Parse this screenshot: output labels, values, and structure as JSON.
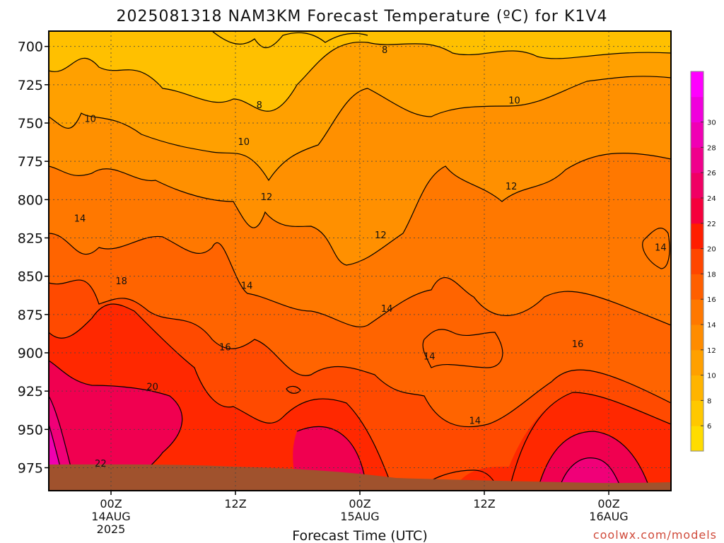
{
  "chart_data": {
    "type": "heatmap",
    "title": "2025081318 NAM3KM Forecast Temperature (ºC) for K1V4",
    "xlabel": "Forecast Time (UTC)",
    "ylabel": "",
    "y_ticks": [
      "700",
      "725",
      "750",
      "775",
      "800",
      "825",
      "850",
      "875",
      "900",
      "925",
      "950",
      "975"
    ],
    "y_range": [
      690,
      990
    ],
    "x_ticks": [
      {
        "hour": 0,
        "line1": "00Z",
        "line2": "14AUG",
        "line3": "2025"
      },
      {
        "hour": 12,
        "line1": "12Z",
        "line2": "",
        "line3": ""
      },
      {
        "hour": 24,
        "line1": "00Z",
        "line2": "15AUG",
        "line3": ""
      },
      {
        "hour": 36,
        "line1": "12Z",
        "line2": "",
        "line3": ""
      },
      {
        "hour": 48,
        "line1": "00Z",
        "line2": "16AUG",
        "line3": ""
      }
    ],
    "x_range": [
      -6,
      54
    ],
    "colorbar": {
      "labels": [
        "6",
        "8",
        "10",
        "12",
        "14",
        "16",
        "18",
        "20",
        "22",
        "24",
        "26",
        "28",
        "30"
      ],
      "colors": [
        "#ffdc00",
        "#ffc800",
        "#ffb400",
        "#ffa000",
        "#ff8c00",
        "#ff7800",
        "#ff5f00",
        "#ff4600",
        "#ff1e00",
        "#f5003c",
        "#f00064",
        "#f0008c",
        "#f000b4",
        "#f000dc",
        "#ff00ff"
      ]
    },
    "contour_labels": [
      {
        "text": "8",
        "hour": 14.3,
        "p": 738
      },
      {
        "text": "8",
        "hour": 26.4,
        "p": 702
      },
      {
        "text": "10",
        "hour": -2.0,
        "p": 747
      },
      {
        "text": "10",
        "hour": 12.8,
        "p": 762
      },
      {
        "text": "10",
        "hour": 38.9,
        "p": 735
      },
      {
        "text": "12",
        "hour": 15.0,
        "p": 798
      },
      {
        "text": "12",
        "hour": 26.0,
        "p": 823
      },
      {
        "text": "12",
        "hour": 38.6,
        "p": 791
      },
      {
        "text": "14",
        "hour": -3.0,
        "p": 812
      },
      {
        "text": "14",
        "hour": 13.1,
        "p": 856
      },
      {
        "text": "14",
        "hour": 26.6,
        "p": 871
      },
      {
        "text": "14",
        "hour": 30.7,
        "p": 902
      },
      {
        "text": "14",
        "hour": 35.1,
        "p": 944
      },
      {
        "text": "14",
        "hour": 53.0,
        "p": 831
      },
      {
        "text": "16",
        "hour": 11.0,
        "p": 896
      },
      {
        "text": "16",
        "hour": 45.0,
        "p": 894
      },
      {
        "text": "18",
        "hour": 1.0,
        "p": 853
      },
      {
        "text": "20",
        "hour": 4.0,
        "p": 922
      },
      {
        "text": "22",
        "hour": -1.0,
        "p": 972
      }
    ],
    "grid": true,
    "legend": "right colorbar"
  },
  "credit": "coolwx.com/models",
  "colors": {
    "ground": "#a0522d",
    "frame": "#000000"
  }
}
